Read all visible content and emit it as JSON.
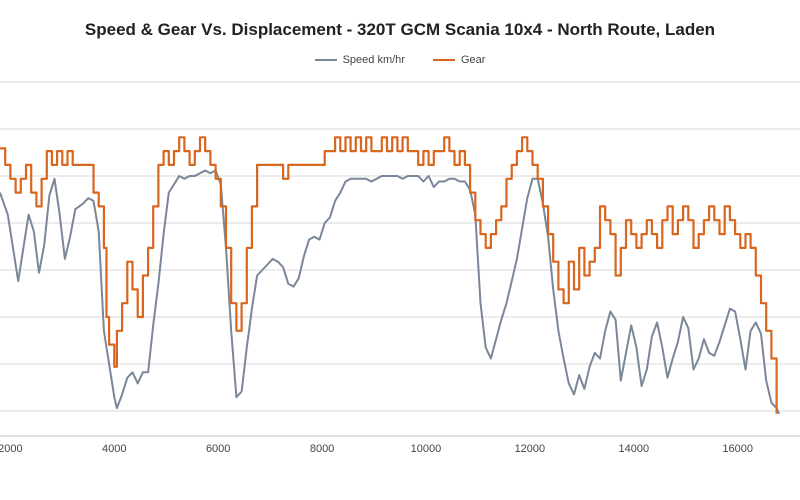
{
  "chart_data": {
    "type": "line",
    "title": "Speed & Gear Vs. Displacement - 320T GCM Scania 10x4 - North Route, Laden",
    "xlabel": "",
    "ylabel": "",
    "xlim": [
      1800,
      17200
    ],
    "x_ticks": [
      "2000",
      "4000",
      "6000",
      "8000",
      "10000",
      "12000",
      "14000",
      "16000"
    ],
    "grid": true,
    "legend_position": "top-center",
    "series": [
      {
        "name": "Speed km/hr",
        "color": "#7a8799",
        "points": [
          [
            1800,
            60
          ],
          [
            1950,
            52
          ],
          [
            2050,
            40
          ],
          [
            2150,
            28
          ],
          [
            2250,
            40
          ],
          [
            2350,
            52
          ],
          [
            2450,
            46
          ],
          [
            2550,
            31
          ],
          [
            2650,
            41
          ],
          [
            2750,
            59
          ],
          [
            2850,
            65
          ],
          [
            2950,
            52
          ],
          [
            3050,
            36
          ],
          [
            3150,
            44
          ],
          [
            3250,
            54
          ],
          [
            3400,
            56
          ],
          [
            3500,
            58
          ],
          [
            3600,
            57
          ],
          [
            3700,
            46
          ],
          [
            3800,
            10
          ],
          [
            3900,
            -2
          ],
          [
            4000,
            -14
          ],
          [
            4050,
            -18
          ],
          [
            4150,
            -13
          ],
          [
            4250,
            -7
          ],
          [
            4350,
            -5
          ],
          [
            4450,
            -9
          ],
          [
            4550,
            -5
          ],
          [
            4650,
            -5
          ],
          [
            4750,
            12
          ],
          [
            4850,
            27
          ],
          [
            4950,
            45
          ],
          [
            5050,
            60
          ],
          [
            5150,
            63
          ],
          [
            5250,
            66
          ],
          [
            5350,
            65
          ],
          [
            5450,
            66
          ],
          [
            5550,
            66
          ],
          [
            5650,
            67
          ],
          [
            5750,
            68
          ],
          [
            5850,
            67
          ],
          [
            5950,
            68
          ],
          [
            6050,
            63
          ],
          [
            6150,
            40
          ],
          [
            6250,
            10
          ],
          [
            6350,
            -14
          ],
          [
            6450,
            -12
          ],
          [
            6550,
            4
          ],
          [
            6650,
            18
          ],
          [
            6750,
            30
          ],
          [
            6850,
            32
          ],
          [
            6950,
            34
          ],
          [
            7050,
            36
          ],
          [
            7150,
            35
          ],
          [
            7250,
            33
          ],
          [
            7350,
            27
          ],
          [
            7450,
            26
          ],
          [
            7550,
            29
          ],
          [
            7650,
            37
          ],
          [
            7750,
            43
          ],
          [
            7850,
            44
          ],
          [
            7950,
            43
          ],
          [
            8050,
            49
          ],
          [
            8150,
            51
          ],
          [
            8250,
            57
          ],
          [
            8350,
            60
          ],
          [
            8450,
            64
          ],
          [
            8550,
            65
          ],
          [
            8650,
            65
          ],
          [
            8750,
            65
          ],
          [
            8850,
            65
          ],
          [
            8950,
            64
          ],
          [
            9050,
            65
          ],
          [
            9150,
            66
          ],
          [
            9250,
            66
          ],
          [
            9350,
            66
          ],
          [
            9450,
            66
          ],
          [
            9550,
            65
          ],
          [
            9650,
            66
          ],
          [
            9750,
            66
          ],
          [
            9850,
            66
          ],
          [
            9950,
            64
          ],
          [
            10050,
            66
          ],
          [
            10150,
            62
          ],
          [
            10250,
            64
          ],
          [
            10350,
            64
          ],
          [
            10450,
            65
          ],
          [
            10550,
            65
          ],
          [
            10650,
            64
          ],
          [
            10750,
            64
          ],
          [
            10850,
            61
          ],
          [
            10950,
            52
          ],
          [
            11050,
            20
          ],
          [
            11150,
            4
          ],
          [
            11250,
            0
          ],
          [
            11350,
            7
          ],
          [
            11450,
            14
          ],
          [
            11550,
            20
          ],
          [
            11650,
            28
          ],
          [
            11750,
            36
          ],
          [
            11850,
            47
          ],
          [
            11950,
            58
          ],
          [
            12050,
            65
          ],
          [
            12150,
            65
          ],
          [
            12250,
            56
          ],
          [
            12350,
            44
          ],
          [
            12450,
            25
          ],
          [
            12550,
            10
          ],
          [
            12650,
            0
          ],
          [
            12750,
            -9
          ],
          [
            12850,
            -13
          ],
          [
            12950,
            -6
          ],
          [
            13050,
            -11
          ],
          [
            13150,
            -3
          ],
          [
            13250,
            2
          ],
          [
            13350,
            0
          ],
          [
            13450,
            10
          ],
          [
            13550,
            17
          ],
          [
            13650,
            14
          ],
          [
            13750,
            -8
          ],
          [
            13850,
            2
          ],
          [
            13950,
            12
          ],
          [
            14050,
            4
          ],
          [
            14150,
            -10
          ],
          [
            14250,
            -4
          ],
          [
            14350,
            8
          ],
          [
            14450,
            13
          ],
          [
            14550,
            4
          ],
          [
            14650,
            -7
          ],
          [
            14750,
            0
          ],
          [
            14850,
            6
          ],
          [
            14950,
            15
          ],
          [
            15050,
            11
          ],
          [
            15150,
            -4
          ],
          [
            15250,
            0
          ],
          [
            15350,
            7
          ],
          [
            15450,
            2
          ],
          [
            15550,
            1
          ],
          [
            15650,
            6
          ],
          [
            15750,
            12
          ],
          [
            15850,
            18
          ],
          [
            15950,
            17
          ],
          [
            16050,
            7
          ],
          [
            16150,
            -4
          ],
          [
            16250,
            10
          ],
          [
            16350,
            13
          ],
          [
            16450,
            9
          ],
          [
            16550,
            -8
          ],
          [
            16650,
            -16
          ],
          [
            16750,
            -18
          ],
          [
            16800,
            -20
          ]
        ]
      },
      {
        "name": "Gear",
        "color": "#d9661f",
        "points": [
          [
            1800,
            76
          ],
          [
            1900,
            70
          ],
          [
            2000,
            65
          ],
          [
            2100,
            60
          ],
          [
            2200,
            65
          ],
          [
            2300,
            70
          ],
          [
            2400,
            60
          ],
          [
            2500,
            55
          ],
          [
            2600,
            65
          ],
          [
            2700,
            75
          ],
          [
            2800,
            70
          ],
          [
            2900,
            75
          ],
          [
            3000,
            70
          ],
          [
            3100,
            75
          ],
          [
            3200,
            70
          ],
          [
            3300,
            70
          ],
          [
            3400,
            70
          ],
          [
            3500,
            70
          ],
          [
            3600,
            60
          ],
          [
            3700,
            55
          ],
          [
            3800,
            40
          ],
          [
            3850,
            15
          ],
          [
            3900,
            5
          ],
          [
            4000,
            -3
          ],
          [
            4050,
            10
          ],
          [
            4150,
            20
          ],
          [
            4250,
            35
          ],
          [
            4350,
            25
          ],
          [
            4450,
            15
          ],
          [
            4550,
            30
          ],
          [
            4650,
            40
          ],
          [
            4750,
            55
          ],
          [
            4850,
            70
          ],
          [
            4950,
            75
          ],
          [
            5050,
            70
          ],
          [
            5150,
            75
          ],
          [
            5250,
            80
          ],
          [
            5350,
            75
          ],
          [
            5450,
            70
          ],
          [
            5550,
            75
          ],
          [
            5650,
            80
          ],
          [
            5750,
            75
          ],
          [
            5850,
            70
          ],
          [
            5950,
            65
          ],
          [
            6050,
            55
          ],
          [
            6150,
            40
          ],
          [
            6250,
            20
          ],
          [
            6350,
            10
          ],
          [
            6450,
            20
          ],
          [
            6550,
            40
          ],
          [
            6650,
            55
          ],
          [
            6750,
            70
          ],
          [
            6850,
            70
          ],
          [
            6950,
            70
          ],
          [
            7050,
            70
          ],
          [
            7150,
            70
          ],
          [
            7250,
            65
          ],
          [
            7350,
            70
          ],
          [
            7450,
            70
          ],
          [
            7550,
            70
          ],
          [
            7650,
            70
          ],
          [
            7750,
            70
          ],
          [
            7850,
            70
          ],
          [
            7950,
            70
          ],
          [
            8050,
            75
          ],
          [
            8150,
            75
          ],
          [
            8250,
            80
          ],
          [
            8350,
            75
          ],
          [
            8450,
            80
          ],
          [
            8550,
            75
          ],
          [
            8650,
            80
          ],
          [
            8750,
            75
          ],
          [
            8850,
            80
          ],
          [
            8950,
            75
          ],
          [
            9050,
            75
          ],
          [
            9150,
            80
          ],
          [
            9250,
            75
          ],
          [
            9350,
            80
          ],
          [
            9450,
            75
          ],
          [
            9550,
            80
          ],
          [
            9650,
            75
          ],
          [
            9750,
            75
          ],
          [
            9850,
            70
          ],
          [
            9950,
            75
          ],
          [
            10050,
            70
          ],
          [
            10150,
            75
          ],
          [
            10250,
            75
          ],
          [
            10350,
            80
          ],
          [
            10450,
            75
          ],
          [
            10550,
            70
          ],
          [
            10650,
            75
          ],
          [
            10750,
            70
          ],
          [
            10850,
            60
          ],
          [
            10950,
            50
          ],
          [
            11050,
            45
          ],
          [
            11150,
            40
          ],
          [
            11250,
            45
          ],
          [
            11350,
            50
          ],
          [
            11450,
            55
          ],
          [
            11550,
            65
          ],
          [
            11650,
            70
          ],
          [
            11750,
            75
          ],
          [
            11850,
            80
          ],
          [
            11950,
            75
          ],
          [
            12050,
            70
          ],
          [
            12150,
            65
          ],
          [
            12250,
            55
          ],
          [
            12350,
            45
          ],
          [
            12450,
            35
          ],
          [
            12550,
            25
          ],
          [
            12650,
            20
          ],
          [
            12750,
            35
          ],
          [
            12850,
            25
          ],
          [
            12950,
            40
          ],
          [
            13050,
            30
          ],
          [
            13150,
            35
          ],
          [
            13250,
            40
          ],
          [
            13350,
            55
          ],
          [
            13450,
            50
          ],
          [
            13550,
            45
          ],
          [
            13650,
            30
          ],
          [
            13750,
            40
          ],
          [
            13850,
            50
          ],
          [
            13950,
            45
          ],
          [
            14050,
            40
          ],
          [
            14150,
            45
          ],
          [
            14250,
            50
          ],
          [
            14350,
            45
          ],
          [
            14450,
            40
          ],
          [
            14550,
            50
          ],
          [
            14650,
            55
          ],
          [
            14750,
            45
          ],
          [
            14850,
            50
          ],
          [
            14950,
            55
          ],
          [
            15050,
            50
          ],
          [
            15150,
            40
          ],
          [
            15250,
            45
          ],
          [
            15350,
            50
          ],
          [
            15450,
            55
          ],
          [
            15550,
            50
          ],
          [
            15650,
            45
          ],
          [
            15750,
            55
          ],
          [
            15850,
            50
          ],
          [
            15950,
            45
          ],
          [
            16050,
            40
          ],
          [
            16150,
            45
          ],
          [
            16250,
            40
          ],
          [
            16350,
            30
          ],
          [
            16450,
            20
          ],
          [
            16550,
            10
          ],
          [
            16650,
            0
          ],
          [
            16750,
            -20
          ]
        ]
      }
    ]
  }
}
